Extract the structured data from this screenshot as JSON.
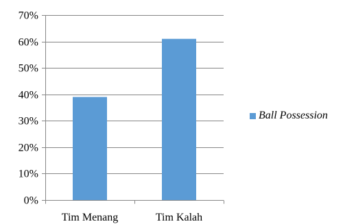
{
  "chart_data": {
    "type": "bar",
    "categories": [
      "Tim Menang",
      "Tim Kalah"
    ],
    "series": [
      {
        "name": "Ball Possession",
        "values": [
          39,
          61
        ],
        "color": "#5B9BD5"
      }
    ],
    "y_unit": "%",
    "ylim": [
      0,
      70
    ],
    "y_ticks": [
      0,
      10,
      20,
      30,
      40,
      50,
      60,
      70
    ],
    "y_tick_labels": [
      "0%",
      "10%",
      "20%",
      "30%",
      "40%",
      "50%",
      "60%",
      "70%"
    ],
    "grid": true,
    "legend_position": "right",
    "colors": {
      "bar": "#5B9BD5",
      "grid": "#868686",
      "axis": "#868686",
      "text": "#000000"
    }
  }
}
